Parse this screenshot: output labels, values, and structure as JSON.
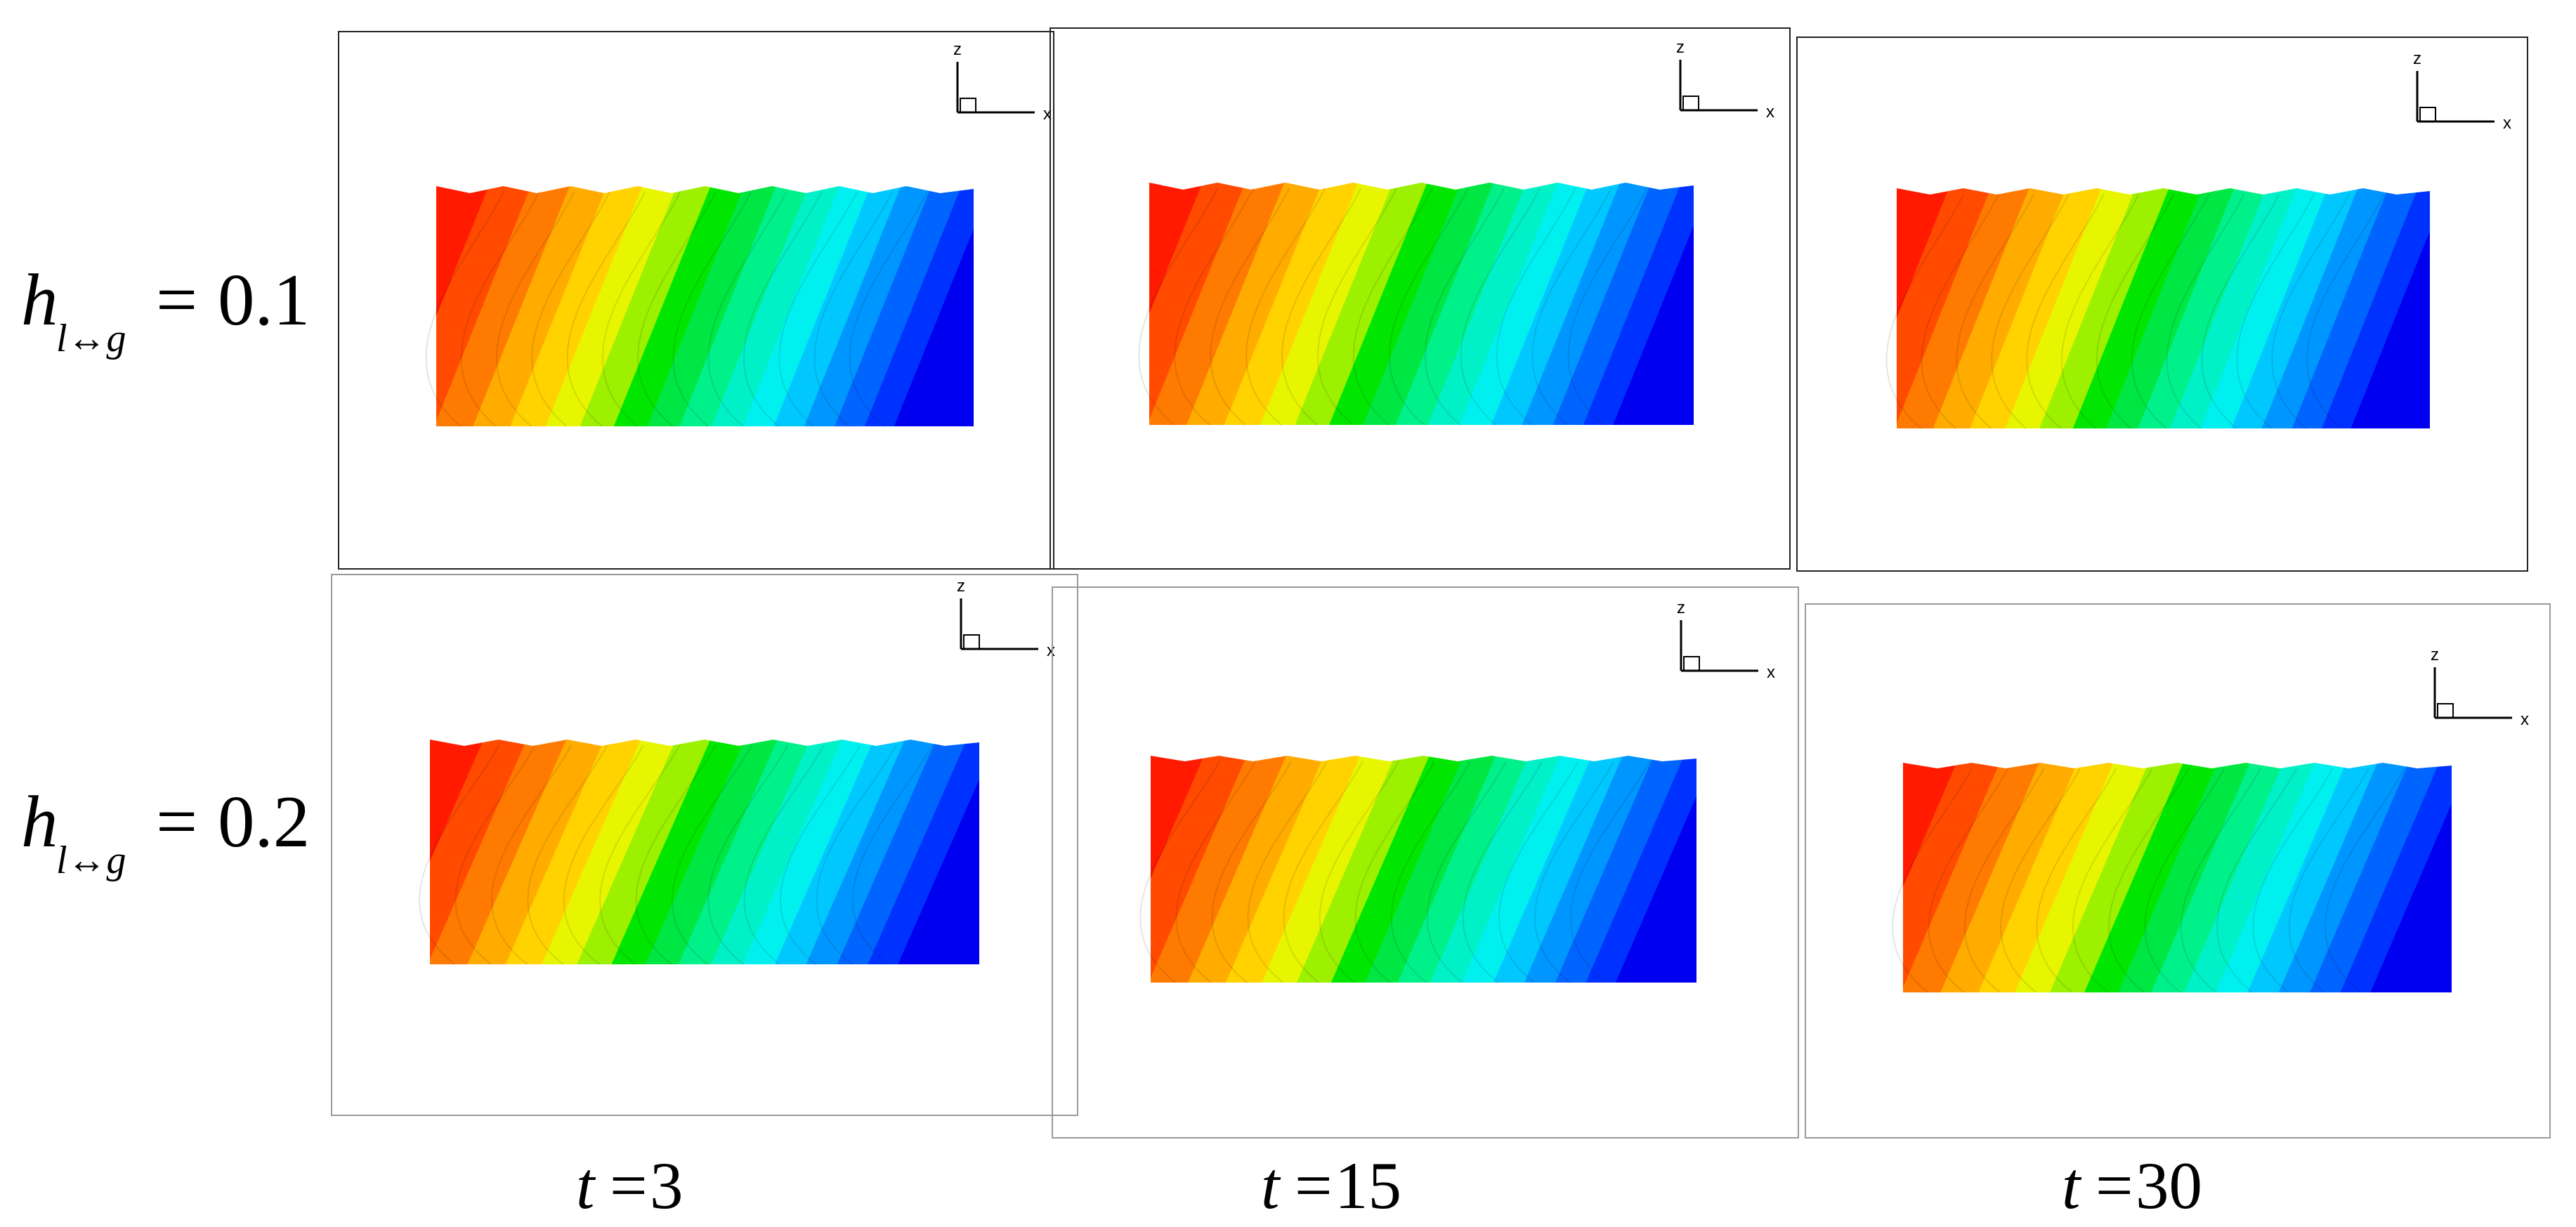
{
  "rows": [
    {
      "coef_value": "0.1",
      "coef_var": "h",
      "coef_subscript": "l↔g"
    },
    {
      "coef_value": "0.2",
      "coef_var": "h",
      "coef_subscript": "l↔g"
    }
  ],
  "columns": [
    {
      "time_var": "t",
      "time_value": "3"
    },
    {
      "time_var": "t",
      "time_value": "15"
    },
    {
      "time_var": "t",
      "time_value": "30"
    }
  ],
  "equals_sign": "=",
  "axis_triad": {
    "vertical_label": "z",
    "horizontal_label": "x"
  },
  "colormap": [
    "#ff1a00",
    "#ff4a00",
    "#ff7a00",
    "#ffab00",
    "#ffd200",
    "#e8f500",
    "#9cf000",
    "#00e600",
    "#00e642",
    "#00f08a",
    "#00f0c8",
    "#00f0f0",
    "#00c8ff",
    "#0096ff",
    "#0064ff",
    "#0032ff",
    "#0000f0"
  ]
}
